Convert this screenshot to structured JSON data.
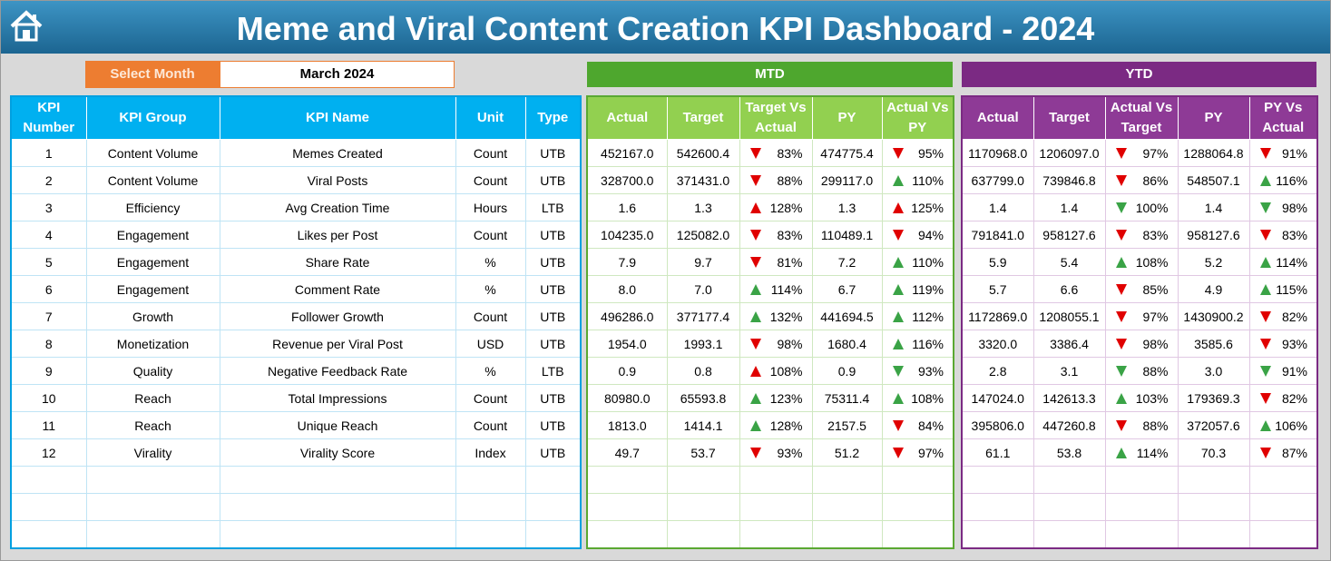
{
  "header": {
    "title": "Meme and Viral Content Creation KPI Dashboard - 2024"
  },
  "month_selector": {
    "label": "Select Month",
    "value": "March 2024"
  },
  "sections": {
    "mtd": "MTD",
    "ytd": "YTD"
  },
  "table": {
    "columns": [
      "KPI Number",
      "KPI Group",
      "KPI Name",
      "Unit",
      "Type",
      "Actual",
      "Target",
      "Target Vs Actual",
      "PY",
      "Actual Vs PY",
      "Actual",
      "Target",
      "Actual Vs Target",
      "PY",
      "PY Vs Actual"
    ],
    "rows": [
      [
        "1",
        "Content Volume",
        "Memes Created",
        "Count",
        "UTB",
        "452167.0",
        "542600.4",
        "83%",
        "474775.4",
        "95%",
        "1170968.0",
        "1206097.0",
        "97%",
        "1288064.8",
        "91%"
      ],
      [
        "2",
        "Content Volume",
        "Viral Posts",
        "Count",
        "UTB",
        "328700.0",
        "371431.0",
        "88%",
        "299117.0",
        "110%",
        "637799.0",
        "739846.8",
        "86%",
        "548507.1",
        "116%"
      ],
      [
        "3",
        "Efficiency",
        "Avg Creation Time",
        "Hours",
        "LTB",
        "1.6",
        "1.3",
        "128%",
        "1.3",
        "125%",
        "1.4",
        "1.4",
        "100%",
        "1.4",
        "98%"
      ],
      [
        "4",
        "Engagement",
        "Likes per Post",
        "Count",
        "UTB",
        "104235.0",
        "125082.0",
        "83%",
        "110489.1",
        "94%",
        "791841.0",
        "958127.6",
        "83%",
        "958127.6",
        "83%"
      ],
      [
        "5",
        "Engagement",
        "Share Rate",
        "%",
        "UTB",
        "7.9",
        "9.7",
        "81%",
        "7.2",
        "110%",
        "5.9",
        "5.4",
        "108%",
        "5.2",
        "114%"
      ],
      [
        "6",
        "Engagement",
        "Comment Rate",
        "%",
        "UTB",
        "8.0",
        "7.0",
        "114%",
        "6.7",
        "119%",
        "5.7",
        "6.6",
        "85%",
        "4.9",
        "115%"
      ],
      [
        "7",
        "Growth",
        "Follower Growth",
        "Count",
        "UTB",
        "496286.0",
        "377177.4",
        "132%",
        "441694.5",
        "112%",
        "1172869.0",
        "1208055.1",
        "97%",
        "1430900.2",
        "82%"
      ],
      [
        "8",
        "Monetization",
        "Revenue per Viral Post",
        "USD",
        "UTB",
        "1954.0",
        "1993.1",
        "98%",
        "1680.4",
        "116%",
        "3320.0",
        "3386.4",
        "98%",
        "3585.6",
        "93%"
      ],
      [
        "9",
        "Quality",
        "Negative Feedback Rate",
        "%",
        "LTB",
        "0.9",
        "0.8",
        "108%",
        "0.9",
        "93%",
        "2.8",
        "3.1",
        "88%",
        "3.0",
        "91%"
      ],
      [
        "10",
        "Reach",
        "Total Impressions",
        "Count",
        "UTB",
        "80980.0",
        "65593.8",
        "123%",
        "75311.4",
        "108%",
        "147024.0",
        "142613.3",
        "103%",
        "179369.3",
        "82%"
      ],
      [
        "11",
        "Reach",
        "Unique Reach",
        "Count",
        "UTB",
        "1813.0",
        "1414.1",
        "128%",
        "2157.5",
        "84%",
        "395806.0",
        "447260.8",
        "88%",
        "372057.6",
        "106%"
      ],
      [
        "12",
        "Virality",
        "Virality Score",
        "Index",
        "UTB",
        "49.7",
        "53.7",
        "93%",
        "51.2",
        "97%",
        "61.1",
        "53.8",
        "114%",
        "70.3",
        "87%"
      ]
    ]
  }
}
